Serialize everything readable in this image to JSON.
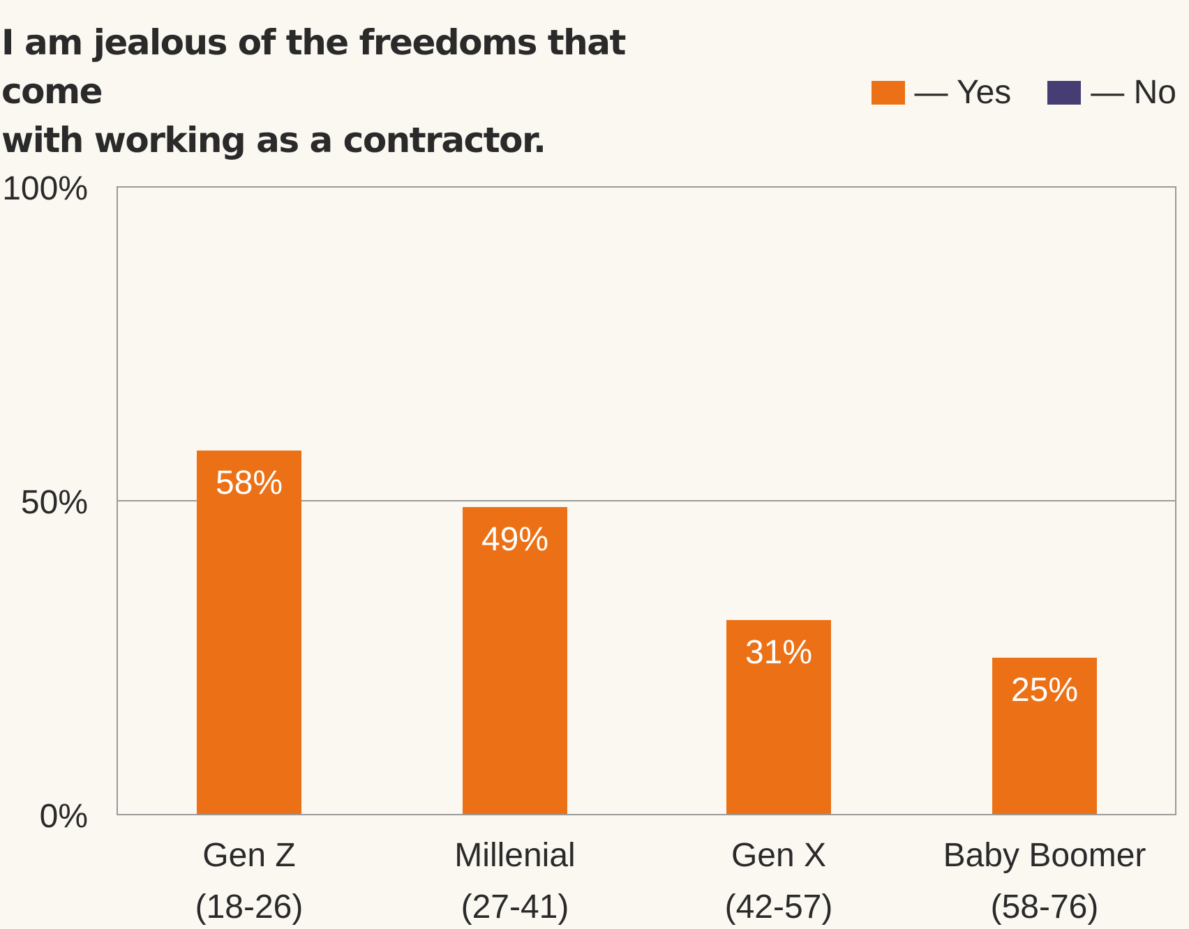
{
  "title_lines": [
    "I am jealous of the freedoms that come",
    "with working as a contractor."
  ],
  "legend": [
    {
      "label": "— Yes",
      "color": "#ec7116"
    },
    {
      "label": "— No",
      "color": "#453d73"
    }
  ],
  "chart_data": {
    "type": "bar",
    "title": "I am jealous of the freedoms that come with working as a contractor.",
    "categories": [
      {
        "line1": "Gen Z",
        "line2": "(18-26)"
      },
      {
        "line1": "Millenial",
        "line2": "(27-41)"
      },
      {
        "line1": "Gen X",
        "line2": "(42-57)"
      },
      {
        "line1": "Baby Boomer",
        "line2": "(58-76)"
      }
    ],
    "series": [
      {
        "name": "Yes",
        "color": "#ec7116",
        "values": [
          58,
          49,
          31,
          25
        ],
        "labels": [
          "58%",
          "49%",
          "31%",
          "25%"
        ]
      }
    ],
    "ylim": [
      0,
      100
    ],
    "yticks": [
      {
        "value": 0,
        "label": "0%"
      },
      {
        "value": 50,
        "label": "50%"
      },
      {
        "value": 100,
        "label": "100%"
      }
    ],
    "grid": true,
    "legend_position": "top-right"
  }
}
